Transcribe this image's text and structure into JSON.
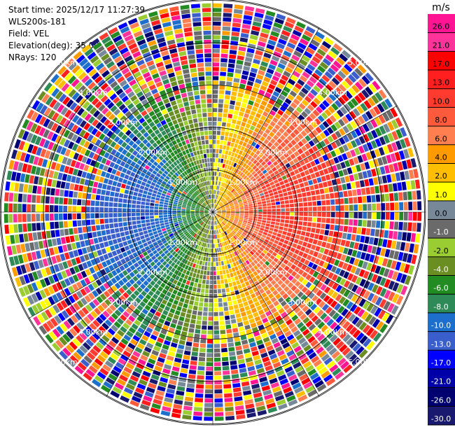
{
  "header": {
    "start_time": "Start time: 2025/12/17 11:27:39",
    "instrument": "WLS200s-181",
    "field": "Field: VEL",
    "elevation": "Elevation(deg): 35.00",
    "nrays": "NRays: 120"
  },
  "chart_data": {
    "type": "heatmap",
    "projection": "polar PPI",
    "field": "VEL",
    "n_rays": 120,
    "ranges_km": [
      "1.00km",
      "2.00km",
      "3.00km",
      "4.00km",
      "5.00km"
    ],
    "colorbar": {
      "unit_label": "m/s",
      "ticks": [
        "26.0",
        "21.0",
        "17.0",
        "13.0",
        "10.0",
        "8.0",
        "6.0",
        "4.0",
        "2.0",
        "1.0",
        "0.0",
        "-1.0",
        "-2.0",
        "-4.0",
        "-6.0",
        "-8.0",
        "-10.0",
        "-13.0",
        "-17.0",
        "-21.0",
        "-26.0",
        "-30.0"
      ],
      "colors": [
        "#FF1493",
        "#FF3399",
        "#FF0000",
        "#FF1F1F",
        "#FF3B30",
        "#FF5A3C",
        "#FF7F50",
        "#FF9A00",
        "#FFBE00",
        "#FFFF00",
        "#778899",
        "#6A6A6A",
        "#9ACD32",
        "#6B8E23",
        "#228B22",
        "#2E8B57",
        "#1E6FCC",
        "#3A5FCD",
        "#0000FF",
        "#0000A8",
        "#000070",
        "#191970"
      ]
    },
    "pattern": "negative (blue/green) velocities west of center, positive (yellow/red) east; noisy multicolor beyond ~2.5 km"
  }
}
